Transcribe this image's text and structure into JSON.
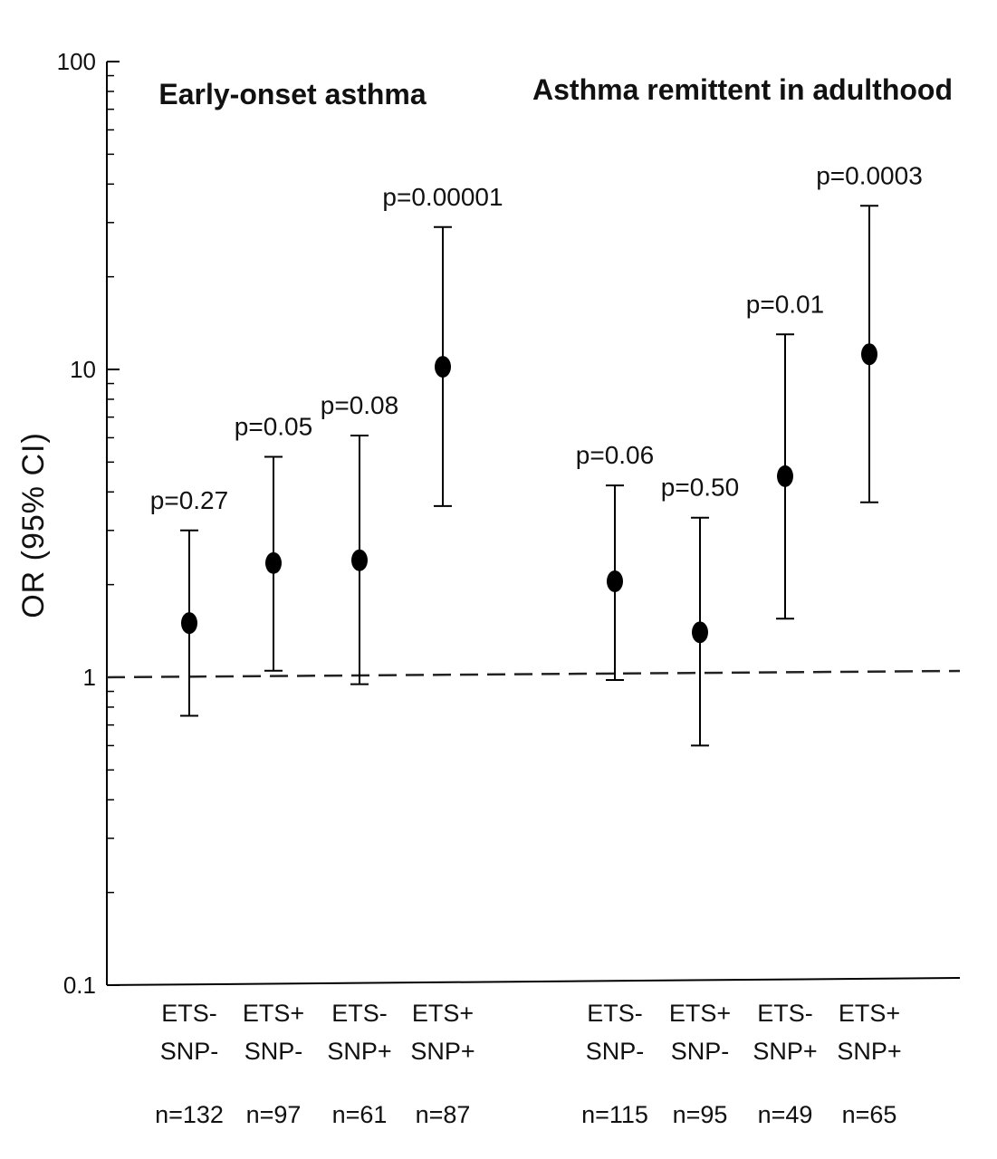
{
  "chart_data": {
    "type": "scatter",
    "yscale": "log",
    "ylim": [
      0.1,
      100
    ],
    "ylabel": "OR (95% CI)",
    "yticks": [
      "0.1",
      "1",
      "10",
      "100"
    ],
    "reference_line": 1,
    "panels": [
      {
        "title": "Early-onset asthma",
        "groups": [
          {
            "ets": "ETS-",
            "snp": "SNP-",
            "n": "n=132",
            "p": "p=0.27",
            "or": 1.5,
            "ci": [
              0.75,
              3.0
            ]
          },
          {
            "ets": "ETS+",
            "snp": "SNP-",
            "n": "n=97",
            "p": "p=0.05",
            "or": 2.35,
            "ci": [
              1.05,
              5.2
            ]
          },
          {
            "ets": "ETS-",
            "snp": "SNP+",
            "n": "n=61",
            "p": "p=0.08",
            "or": 2.4,
            "ci": [
              0.95,
              6.1
            ]
          },
          {
            "ets": "ETS+",
            "snp": "SNP+",
            "n": "n=87",
            "p": "p=0.00001",
            "or": 10.2,
            "ci": [
              3.6,
              29.0
            ]
          }
        ]
      },
      {
        "title": "Asthma remittent in adulthood",
        "groups": [
          {
            "ets": "ETS-",
            "snp": "SNP-",
            "n": "n=115",
            "p": "p=0.06",
            "or": 2.05,
            "ci": [
              0.98,
              4.2
            ]
          },
          {
            "ets": "ETS+",
            "snp": "SNP-",
            "n": "n=95",
            "p": "p=0.50",
            "or": 1.4,
            "ci": [
              0.6,
              3.3
            ]
          },
          {
            "ets": "ETS-",
            "snp": "SNP+",
            "n": "n=49",
            "p": "p=0.01",
            "or": 4.5,
            "ci": [
              1.55,
              13.0
            ]
          },
          {
            "ets": "ETS+",
            "snp": "SNP+",
            "n": "n=65",
            "p": "p=0.0003",
            "or": 11.2,
            "ci": [
              3.7,
              34.0
            ]
          }
        ]
      }
    ]
  }
}
